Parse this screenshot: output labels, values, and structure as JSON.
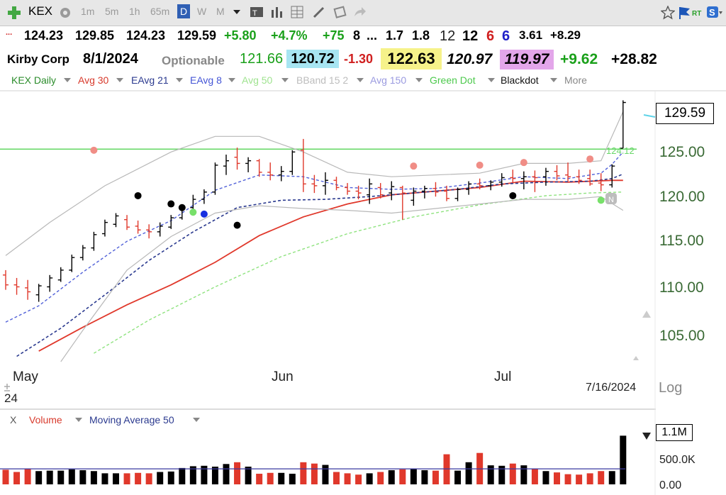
{
  "toolbar": {
    "symbol": "KEX",
    "intervals": [
      "1m",
      "5m",
      "1h",
      "65m"
    ],
    "active_interval": "D",
    "periods": [
      "W",
      "M"
    ]
  },
  "quote_row1": {
    "marker": "...",
    "open": "124.23",
    "high": "129.85",
    "low": "124.23",
    "close": "129.59",
    "change": "+5.80",
    "change_pct": "+4.7%",
    "v1": "+75",
    "v2": "8",
    "v3": "...",
    "v4": "1.7",
    "v5": "1.8",
    "v6": "12",
    "v7": "12",
    "v8": "6",
    "v9": "6",
    "v10": "3.61",
    "v11": "+8.29"
  },
  "quote_row2": {
    "company": "Kirby Corp",
    "date": "8/1/2024",
    "optionable": "Optionable",
    "w1": "121.66",
    "w2": "120.72",
    "w3": "-1.30",
    "w4": "122.63",
    "w5": "120.97",
    "w6": "119.97",
    "w7": "+9.62",
    "w8": "+28.82"
  },
  "studies": {
    "s0": "KEX Daily",
    "s1": "Avg 30",
    "s2": "EAvg 21",
    "s3": "EAvg 8",
    "s4": "Avg 50",
    "s5": "BBand 15 2",
    "s6": "Avg 150",
    "s7": "Green Dot",
    "s8": "Blackdot",
    "more": "More"
  },
  "price_axis": {
    "current": "129.59",
    "ticks": [
      "125.00",
      "120.00",
      "115.00",
      "110.00",
      "105.00"
    ],
    "scale": "Log"
  },
  "time_axis": {
    "months": [
      "May",
      "Jun",
      "Jul"
    ],
    "year": "24",
    "date": "7/16/2024"
  },
  "green_line_label": "124.12",
  "volume_panel": {
    "close_label": "X",
    "volume_label": "Volume",
    "ma_label": "Moving Average 50",
    "current": "1.1M",
    "ticks": [
      "500.0K",
      "0.00"
    ]
  },
  "colors": {
    "up": "#000000",
    "down": "#e0382b",
    "avg30": "#e0382b",
    "eavg21": "#2b3a8f",
    "eavg8": "#5060d8",
    "avg50": "#8fe37f",
    "bband": "#b8b8b8",
    "green_line": "#6ad86a"
  },
  "chart_data": {
    "type": "ohlc",
    "x": [
      1,
      2,
      3,
      4,
      5,
      6,
      7,
      8,
      9,
      10,
      11,
      12,
      13,
      14,
      15,
      16,
      17,
      18,
      19,
      20,
      21,
      22,
      23,
      24,
      25,
      26,
      27,
      28,
      29,
      30,
      31,
      32,
      33,
      34,
      35,
      36,
      37,
      38,
      39,
      40,
      41,
      42,
      43,
      44,
      45,
      46,
      47,
      48,
      49,
      50,
      51,
      52,
      53,
      54,
      55,
      56,
      57
    ],
    "ohlc": [
      [
        110.5,
        111.0,
        109.0,
        109.5
      ],
      [
        109.5,
        110.2,
        108.5,
        109.3
      ],
      [
        109.2,
        110.0,
        108.0,
        108.8
      ],
      [
        108.5,
        109.6,
        107.8,
        109.4
      ],
      [
        109.3,
        110.5,
        108.8,
        110.2
      ],
      [
        110.0,
        111.3,
        109.8,
        111.0
      ],
      [
        111.0,
        112.6,
        110.8,
        112.3
      ],
      [
        112.3,
        113.6,
        112.0,
        113.3
      ],
      [
        113.3,
        115.0,
        113.0,
        114.7
      ],
      [
        114.8,
        116.3,
        114.5,
        116.0
      ],
      [
        115.8,
        117.0,
        115.5,
        116.7
      ],
      [
        116.3,
        116.8,
        115.2,
        115.5
      ],
      [
        115.6,
        116.2,
        114.8,
        115.2
      ],
      [
        115.2,
        115.8,
        114.3,
        115.0
      ],
      [
        115.0,
        116.0,
        114.5,
        115.6
      ],
      [
        115.5,
        116.8,
        115.3,
        116.5
      ],
      [
        116.5,
        117.8,
        116.3,
        117.6
      ],
      [
        117.6,
        119.0,
        117.2,
        118.5
      ],
      [
        118.5,
        119.6,
        118.0,
        119.3
      ],
      [
        119.3,
        122.6,
        119.0,
        122.3
      ],
      [
        122.2,
        123.5,
        121.2,
        122.8
      ],
      [
        123.2,
        124.3,
        121.8,
        122.5
      ],
      [
        122.5,
        123.2,
        121.5,
        122.8
      ],
      [
        122.8,
        123.0,
        121.0,
        121.5
      ],
      [
        121.5,
        122.6,
        120.6,
        121.2
      ],
      [
        121.2,
        122.2,
        120.5,
        121.6
      ],
      [
        121.6,
        124.0,
        121.2,
        123.8
      ],
      [
        124.0,
        125.3,
        119.3,
        120.2
      ],
      [
        120.2,
        121.2,
        119.2,
        120.0
      ],
      [
        120.0,
        121.5,
        119.0,
        120.6
      ],
      [
        120.6,
        121.0,
        119.5,
        119.8
      ],
      [
        119.8,
        120.3,
        119.0,
        119.4
      ],
      [
        119.4,
        120.0,
        118.5,
        119.2
      ],
      [
        119.0,
        120.8,
        118.0,
        120.2
      ],
      [
        119.8,
        120.3,
        118.6,
        119.0
      ],
      [
        119.2,
        120.5,
        118.4,
        119.9
      ],
      [
        119.8,
        120.0,
        116.3,
        119.2
      ],
      [
        118.4,
        119.8,
        117.8,
        119.4
      ],
      [
        119.4,
        120.0,
        118.6,
        119.7
      ],
      [
        119.7,
        120.4,
        118.8,
        119.3
      ],
      [
        119.4,
        120.0,
        118.3,
        118.6
      ],
      [
        118.6,
        119.8,
        118.3,
        119.6
      ],
      [
        119.6,
        120.5,
        119.0,
        120.2
      ],
      [
        120.2,
        120.8,
        119.6,
        120.0
      ],
      [
        120.0,
        120.6,
        119.5,
        120.4
      ],
      [
        120.4,
        121.4,
        119.9,
        120.9
      ],
      [
        120.9,
        121.8,
        120.3,
        120.8
      ],
      [
        120.8,
        121.6,
        119.6,
        121.0
      ],
      [
        121.0,
        121.7,
        119.3,
        120.9
      ],
      [
        121.0,
        122.0,
        120.0,
        121.6
      ],
      [
        121.6,
        122.3,
        120.6,
        121.1
      ],
      [
        121.2,
        122.6,
        120.5,
        121.0
      ],
      [
        121.0,
        121.8,
        120.2,
        120.6
      ],
      [
        120.8,
        121.8,
        120.0,
        120.2
      ],
      [
        120.3,
        121.4,
        119.4,
        120.1
      ],
      [
        120.1,
        122.4,
        119.8,
        122.2
      ],
      [
        124.23,
        129.85,
        124.23,
        129.59
      ]
    ],
    "volume": [
      0.33,
      0.28,
      0.36,
      0.3,
      0.31,
      0.31,
      0.34,
      0.32,
      0.3,
      0.25,
      0.25,
      0.25,
      0.26,
      0.25,
      0.28,
      0.29,
      0.37,
      0.41,
      0.42,
      0.4,
      0.46,
      0.5,
      0.4,
      0.24,
      0.26,
      0.26,
      0.24,
      0.5,
      0.47,
      0.44,
      0.28,
      0.25,
      0.22,
      0.25,
      0.28,
      0.32,
      0.34,
      0.36,
      0.32,
      0.31,
      0.68,
      0.31,
      0.5,
      0.71,
      0.43,
      0.42,
      0.47,
      0.43,
      0.36,
      0.3,
      0.27,
      0.23,
      0.22,
      0.25,
      0.3,
      0.3,
      1.1
    ],
    "volume_ma50": 0.35,
    "ylim": [
      102,
      131
    ],
    "volume_ylim": [
      0,
      1.25
    ],
    "green_line": 124.12,
    "black_dots": [
      [
        13,
        118.9
      ],
      [
        16,
        118.0
      ],
      [
        17,
        117.6
      ],
      [
        22,
        115.7
      ],
      [
        47,
        118.9
      ]
    ],
    "pink_dots": [
      [
        9,
        124.0
      ],
      [
        38,
        122.2
      ],
      [
        44,
        122.3
      ],
      [
        48,
        122.6
      ],
      [
        54,
        123.0
      ]
    ],
    "green_dots": [
      [
        18,
        117.1
      ],
      [
        55,
        118.4
      ]
    ],
    "blue_dots": [
      [
        19,
        116.9
      ]
    ],
    "series": [
      {
        "name": "Avg 30",
        "x": [
          4,
          8,
          12,
          16,
          20,
          24,
          28,
          32,
          36,
          40,
          44,
          48,
          52,
          56,
          57
        ],
        "values": [
          103.0,
          105.3,
          107.5,
          109.5,
          111.8,
          114.6,
          116.6,
          118.0,
          119.0,
          119.4,
          119.8,
          120.5,
          120.4,
          120.6,
          120.6
        ]
      },
      {
        "name": "EAvg 21",
        "x": [
          2,
          6,
          10,
          14,
          18,
          22,
          26,
          30,
          34,
          38,
          42,
          46,
          50,
          54,
          56,
          57
        ],
        "values": [
          102.5,
          105.2,
          108.5,
          112.0,
          115.0,
          117.6,
          118.4,
          118.5,
          118.8,
          119.2,
          119.6,
          120.2,
          120.4,
          120.5,
          120.8,
          121.3
        ]
      },
      {
        "name": "EAvg 8",
        "x": [
          1,
          4,
          8,
          12,
          16,
          20,
          24,
          28,
          32,
          36,
          40,
          44,
          48,
          52,
          55,
          56,
          57
        ],
        "values": [
          105.8,
          107.4,
          110.8,
          114.0,
          116.2,
          119.5,
          121.2,
          121.0,
          119.8,
          119.6,
          119.7,
          120.3,
          121.0,
          120.8,
          121.4,
          122.4,
          123.8
        ]
      },
      {
        "name": "Avg 50",
        "x": [
          9,
          14,
          20,
          26,
          32,
          38,
          44,
          50,
          54,
          57
        ],
        "values": [
          102.8,
          106.0,
          109.3,
          112.4,
          114.8,
          116.6,
          117.9,
          118.9,
          119.2,
          119.3
        ]
      },
      {
        "name": "BBand Upper",
        "x": [
          1,
          5,
          10,
          16,
          20,
          24,
          28,
          32,
          36,
          40,
          44,
          48,
          52,
          55,
          57
        ],
        "values": [
          112.5,
          116.0,
          120.0,
          123.8,
          125.6,
          125.6,
          123.8,
          121.5,
          121.0,
          121.2,
          121.4,
          122.5,
          122.5,
          122.8,
          128.5
        ]
      },
      {
        "name": "BBand Lower",
        "x": [
          6,
          8,
          12,
          16,
          20,
          24,
          28,
          32,
          36,
          40,
          44,
          48,
          52,
          55,
          57
        ],
        "values": [
          102.0,
          105.0,
          111.0,
          114.5,
          117.0,
          117.8,
          117.5,
          117.3,
          117.0,
          117.5,
          118.0,
          118.5,
          118.5,
          118.8,
          117.3
        ]
      }
    ]
  }
}
